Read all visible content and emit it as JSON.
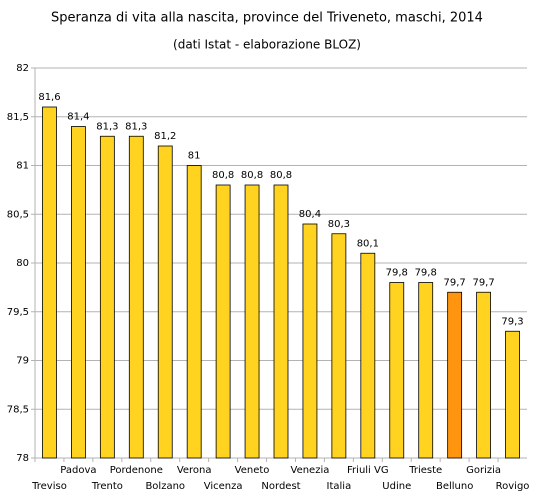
{
  "chart_data": {
    "type": "bar",
    "title": "Speranza di vita alla nascita, province del Triveneto, maschi, 2014",
    "subtitle": "(dati Istat - elaborazione BLOZ)",
    "categories": [
      "Treviso",
      "Padova",
      "Trento",
      "Pordenone",
      "Bolzano",
      "Verona",
      "Vicenza",
      "Veneto",
      "Nordest",
      "Venezia",
      "Italia",
      "Friuli VG",
      "Udine",
      "Trieste",
      "Belluno",
      "Gorizia",
      "Rovigo"
    ],
    "values": [
      81.6,
      81.4,
      81.3,
      81.3,
      81.2,
      81,
      80.8,
      80.8,
      80.8,
      80.4,
      80.3,
      80.1,
      79.8,
      79.8,
      79.7,
      79.7,
      79.3
    ],
    "value_labels": [
      "81,6",
      "81,4",
      "81,3",
      "81,3",
      "81,2",
      "81",
      "80,8",
      "80,8",
      "80,8",
      "80,4",
      "80,3",
      "80,1",
      "79,8",
      "79,8",
      "79,7",
      "79,7",
      "79,3"
    ],
    "colors": [
      "#ffd320",
      "#ffd320",
      "#ffd320",
      "#ffd320",
      "#ffd320",
      "#ffd320",
      "#ffd320",
      "#ffd320",
      "#ffd320",
      "#ffd320",
      "#ffd320",
      "#ffd320",
      "#ffd320",
      "#ffd320",
      "#ff950e",
      "#ffd320",
      "#ffd320"
    ],
    "ylim": [
      78,
      82
    ],
    "yticks": [
      78,
      {
        "value": 78.5,
        "label": "78,5"
      },
      79,
      {
        "value": 79.5,
        "label": "79,5"
      },
      80,
      {
        "value": 80.5,
        "label": "80,5"
      },
      81,
      {
        "value": 81.5,
        "label": "81,5"
      },
      82
    ],
    "grid": true
  }
}
